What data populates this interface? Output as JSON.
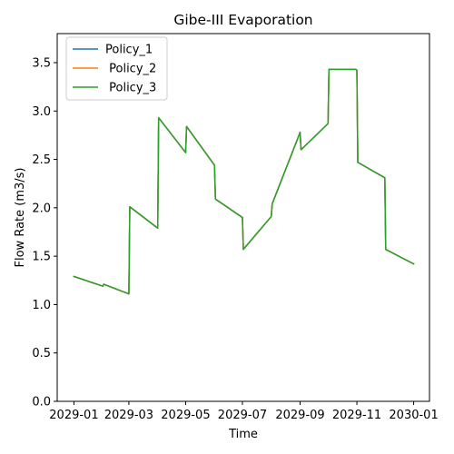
{
  "chart_data": {
    "type": "line",
    "title": "Gibe-III Evaporation",
    "xlabel": "Time",
    "ylabel": "Flow Rate (m3/s)",
    "ylim": [
      0,
      3.8
    ],
    "xlim": [
      "2028-12-14",
      "2030-01-18"
    ],
    "yticks": [
      0.0,
      0.5,
      1.0,
      1.5,
      2.0,
      2.5,
      3.0,
      3.5
    ],
    "ytick_labels": [
      "0.0",
      "0.5",
      "1.0",
      "1.5",
      "2.0",
      "2.5",
      "3.0",
      "3.5"
    ],
    "xticks": [
      "2029-01-01",
      "2029-03-01",
      "2029-05-01",
      "2029-07-01",
      "2029-09-01",
      "2029-11-01",
      "2030-01-01"
    ],
    "xtick_labels": [
      "2029-01",
      "2029-03",
      "2029-05",
      "2029-07",
      "2029-09",
      "2029-11",
      "2030-01"
    ],
    "grid": false,
    "legend_position": "top-left",
    "x": [
      "2029-01-01",
      "2029-02-01",
      "2029-02-02",
      "2029-03-01",
      "2029-03-02",
      "2029-04-01",
      "2029-04-02",
      "2029-05-01",
      "2029-05-02",
      "2029-06-01",
      "2029-06-02",
      "2029-07-01",
      "2029-07-02",
      "2029-08-01",
      "2029-08-02",
      "2029-09-01",
      "2029-09-02",
      "2029-10-01",
      "2029-10-02",
      "2029-10-31",
      "2029-11-01",
      "2029-11-02",
      "2029-12-01",
      "2029-12-02",
      "2030-01-01"
    ],
    "series": [
      {
        "name": "Policy_1",
        "color": "#1f77b4",
        "values": [
          1.29,
          1.19,
          1.21,
          1.11,
          2.01,
          1.79,
          2.93,
          2.57,
          2.84,
          2.44,
          2.09,
          1.9,
          1.57,
          1.91,
          2.04,
          2.78,
          2.6,
          2.87,
          3.43,
          3.43,
          3.42,
          2.47,
          2.31,
          1.57,
          1.42
        ]
      },
      {
        "name": " Policy_2",
        "color": "#ff7f0e",
        "values": [
          1.29,
          1.19,
          1.21,
          1.11,
          2.01,
          1.79,
          2.93,
          2.57,
          2.84,
          2.44,
          2.09,
          1.9,
          1.57,
          1.91,
          2.04,
          2.78,
          2.6,
          2.87,
          3.43,
          3.43,
          3.42,
          2.47,
          2.31,
          1.57,
          1.42
        ]
      },
      {
        "name": " Policy_3",
        "color": "#2ca02c",
        "values": [
          1.29,
          1.19,
          1.21,
          1.11,
          2.01,
          1.79,
          2.93,
          2.57,
          2.84,
          2.44,
          2.09,
          1.9,
          1.57,
          1.91,
          2.04,
          2.78,
          2.6,
          2.87,
          3.43,
          3.43,
          3.42,
          2.47,
          2.31,
          1.57,
          1.42
        ]
      }
    ]
  }
}
